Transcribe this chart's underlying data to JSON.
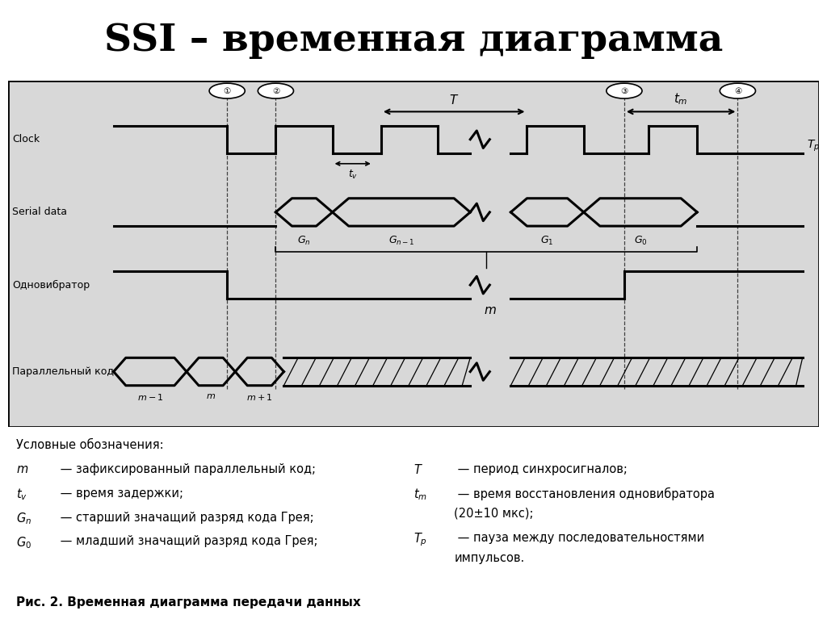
{
  "title": "SSI – временная диаграмма",
  "title_bg": "#00FFFF",
  "diagram_bg": "#D8D8D8",
  "outer_bg": "#FFFFFF",
  "signal_labels": [
    "Clock",
    "Serial data",
    "Одновибратор",
    "Параллельный код"
  ],
  "figure_caption": "Рис. 2. Временная диаграмма передачи данных",
  "legend_header": "Условные обозначения:"
}
